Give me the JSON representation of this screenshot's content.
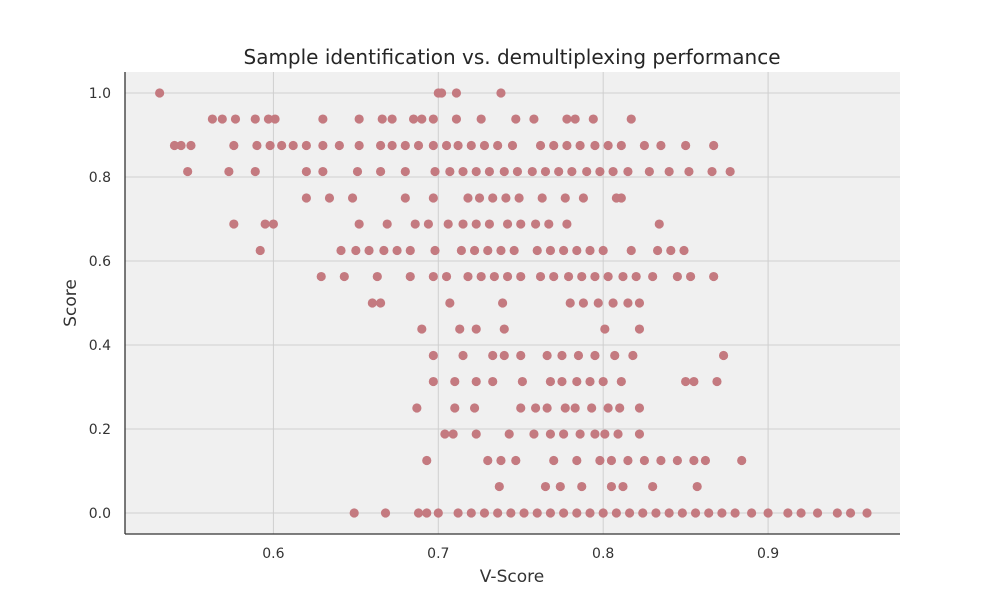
{
  "chart_data": {
    "type": "scatter",
    "title": "Sample identification vs. demultiplexing performance",
    "xlabel": "V-Score",
    "ylabel": "Score",
    "xlim": [
      0.51,
      0.98
    ],
    "ylim": [
      -0.05,
      1.05
    ],
    "xticks": [
      0.6,
      0.7,
      0.8,
      0.9
    ],
    "xtick_labels": [
      "0.6",
      "0.7",
      "0.8",
      "0.9"
    ],
    "yticks": [
      0.0,
      0.2,
      0.4,
      0.6,
      0.8,
      1.0
    ],
    "ytick_labels": [
      "0.0",
      "0.2",
      "0.4",
      "0.6",
      "0.8",
      "1.0"
    ],
    "grid": true,
    "colors": {
      "marker": "#c47a80",
      "plot_bg": "#f0f0f0",
      "grid": "#cfcfcf"
    },
    "series": [
      {
        "points": [
          [
            0.531,
            1.0
          ],
          [
            0.7,
            1.0
          ],
          [
            0.702,
            1.0
          ],
          [
            0.711,
            1.0
          ],
          [
            0.738,
            1.0
          ],
          [
            0.563,
            0.938
          ],
          [
            0.569,
            0.938
          ],
          [
            0.577,
            0.938
          ],
          [
            0.589,
            0.938
          ],
          [
            0.597,
            0.938
          ],
          [
            0.601,
            0.938
          ],
          [
            0.63,
            0.938
          ],
          [
            0.652,
            0.938
          ],
          [
            0.666,
            0.938
          ],
          [
            0.672,
            0.938
          ],
          [
            0.685,
            0.938
          ],
          [
            0.69,
            0.938
          ],
          [
            0.697,
            0.938
          ],
          [
            0.711,
            0.938
          ],
          [
            0.726,
            0.938
          ],
          [
            0.747,
            0.938
          ],
          [
            0.758,
            0.938
          ],
          [
            0.778,
            0.938
          ],
          [
            0.783,
            0.938
          ],
          [
            0.794,
            0.938
          ],
          [
            0.817,
            0.938
          ],
          [
            0.54,
            0.875
          ],
          [
            0.544,
            0.875
          ],
          [
            0.55,
            0.875
          ],
          [
            0.576,
            0.875
          ],
          [
            0.59,
            0.875
          ],
          [
            0.598,
            0.875
          ],
          [
            0.605,
            0.875
          ],
          [
            0.612,
            0.875
          ],
          [
            0.62,
            0.875
          ],
          [
            0.63,
            0.875
          ],
          [
            0.64,
            0.875
          ],
          [
            0.652,
            0.875
          ],
          [
            0.665,
            0.875
          ],
          [
            0.672,
            0.875
          ],
          [
            0.68,
            0.875
          ],
          [
            0.688,
            0.875
          ],
          [
            0.697,
            0.875
          ],
          [
            0.705,
            0.875
          ],
          [
            0.712,
            0.875
          ],
          [
            0.72,
            0.875
          ],
          [
            0.728,
            0.875
          ],
          [
            0.736,
            0.875
          ],
          [
            0.745,
            0.875
          ],
          [
            0.762,
            0.875
          ],
          [
            0.77,
            0.875
          ],
          [
            0.778,
            0.875
          ],
          [
            0.786,
            0.875
          ],
          [
            0.795,
            0.875
          ],
          [
            0.803,
            0.875
          ],
          [
            0.811,
            0.875
          ],
          [
            0.825,
            0.875
          ],
          [
            0.835,
            0.875
          ],
          [
            0.85,
            0.875
          ],
          [
            0.867,
            0.875
          ],
          [
            0.548,
            0.813
          ],
          [
            0.573,
            0.813
          ],
          [
            0.589,
            0.813
          ],
          [
            0.62,
            0.813
          ],
          [
            0.63,
            0.813
          ],
          [
            0.651,
            0.813
          ],
          [
            0.665,
            0.813
          ],
          [
            0.68,
            0.813
          ],
          [
            0.698,
            0.813
          ],
          [
            0.707,
            0.813
          ],
          [
            0.715,
            0.813
          ],
          [
            0.723,
            0.813
          ],
          [
            0.731,
            0.813
          ],
          [
            0.74,
            0.813
          ],
          [
            0.748,
            0.813
          ],
          [
            0.757,
            0.813
          ],
          [
            0.765,
            0.813
          ],
          [
            0.773,
            0.813
          ],
          [
            0.781,
            0.813
          ],
          [
            0.79,
            0.813
          ],
          [
            0.798,
            0.813
          ],
          [
            0.806,
            0.813
          ],
          [
            0.815,
            0.813
          ],
          [
            0.828,
            0.813
          ],
          [
            0.84,
            0.813
          ],
          [
            0.852,
            0.813
          ],
          [
            0.866,
            0.813
          ],
          [
            0.877,
            0.813
          ],
          [
            0.62,
            0.75
          ],
          [
            0.634,
            0.75
          ],
          [
            0.648,
            0.75
          ],
          [
            0.68,
            0.75
          ],
          [
            0.697,
            0.75
          ],
          [
            0.718,
            0.75
          ],
          [
            0.725,
            0.75
          ],
          [
            0.733,
            0.75
          ],
          [
            0.741,
            0.75
          ],
          [
            0.749,
            0.75
          ],
          [
            0.763,
            0.75
          ],
          [
            0.777,
            0.75
          ],
          [
            0.788,
            0.75
          ],
          [
            0.808,
            0.75
          ],
          [
            0.811,
            0.75
          ],
          [
            0.576,
            0.688
          ],
          [
            0.595,
            0.688
          ],
          [
            0.6,
            0.688
          ],
          [
            0.652,
            0.688
          ],
          [
            0.669,
            0.688
          ],
          [
            0.686,
            0.688
          ],
          [
            0.694,
            0.688
          ],
          [
            0.706,
            0.688
          ],
          [
            0.715,
            0.688
          ],
          [
            0.723,
            0.688
          ],
          [
            0.731,
            0.688
          ],
          [
            0.742,
            0.688
          ],
          [
            0.75,
            0.688
          ],
          [
            0.759,
            0.688
          ],
          [
            0.767,
            0.688
          ],
          [
            0.778,
            0.688
          ],
          [
            0.834,
            0.688
          ],
          [
            0.592,
            0.625
          ],
          [
            0.641,
            0.625
          ],
          [
            0.65,
            0.625
          ],
          [
            0.658,
            0.625
          ],
          [
            0.667,
            0.625
          ],
          [
            0.675,
            0.625
          ],
          [
            0.683,
            0.625
          ],
          [
            0.698,
            0.625
          ],
          [
            0.714,
            0.625
          ],
          [
            0.722,
            0.625
          ],
          [
            0.73,
            0.625
          ],
          [
            0.738,
            0.625
          ],
          [
            0.746,
            0.625
          ],
          [
            0.76,
            0.625
          ],
          [
            0.768,
            0.625
          ],
          [
            0.776,
            0.625
          ],
          [
            0.784,
            0.625
          ],
          [
            0.792,
            0.625
          ],
          [
            0.8,
            0.625
          ],
          [
            0.817,
            0.625
          ],
          [
            0.833,
            0.625
          ],
          [
            0.841,
            0.625
          ],
          [
            0.849,
            0.625
          ],
          [
            0.629,
            0.563
          ],
          [
            0.643,
            0.563
          ],
          [
            0.663,
            0.563
          ],
          [
            0.683,
            0.563
          ],
          [
            0.697,
            0.563
          ],
          [
            0.705,
            0.563
          ],
          [
            0.718,
            0.563
          ],
          [
            0.726,
            0.563
          ],
          [
            0.734,
            0.563
          ],
          [
            0.742,
            0.563
          ],
          [
            0.75,
            0.563
          ],
          [
            0.762,
            0.563
          ],
          [
            0.77,
            0.563
          ],
          [
            0.779,
            0.563
          ],
          [
            0.787,
            0.563
          ],
          [
            0.795,
            0.563
          ],
          [
            0.803,
            0.563
          ],
          [
            0.812,
            0.563
          ],
          [
            0.82,
            0.563
          ],
          [
            0.83,
            0.563
          ],
          [
            0.845,
            0.563
          ],
          [
            0.853,
            0.563
          ],
          [
            0.867,
            0.563
          ],
          [
            0.66,
            0.5
          ],
          [
            0.665,
            0.5
          ],
          [
            0.707,
            0.5
          ],
          [
            0.739,
            0.5
          ],
          [
            0.78,
            0.5
          ],
          [
            0.788,
            0.5
          ],
          [
            0.797,
            0.5
          ],
          [
            0.806,
            0.5
          ],
          [
            0.815,
            0.5
          ],
          [
            0.822,
            0.5
          ],
          [
            0.69,
            0.438
          ],
          [
            0.713,
            0.438
          ],
          [
            0.723,
            0.438
          ],
          [
            0.74,
            0.438
          ],
          [
            0.801,
            0.438
          ],
          [
            0.822,
            0.438
          ],
          [
            0.697,
            0.375
          ],
          [
            0.715,
            0.375
          ],
          [
            0.733,
            0.375
          ],
          [
            0.74,
            0.375
          ],
          [
            0.75,
            0.375
          ],
          [
            0.766,
            0.375
          ],
          [
            0.775,
            0.375
          ],
          [
            0.785,
            0.375
          ],
          [
            0.795,
            0.375
          ],
          [
            0.807,
            0.375
          ],
          [
            0.818,
            0.375
          ],
          [
            0.873,
            0.375
          ],
          [
            0.697,
            0.313
          ],
          [
            0.71,
            0.313
          ],
          [
            0.723,
            0.313
          ],
          [
            0.733,
            0.313
          ],
          [
            0.751,
            0.313
          ],
          [
            0.768,
            0.313
          ],
          [
            0.775,
            0.313
          ],
          [
            0.784,
            0.313
          ],
          [
            0.792,
            0.313
          ],
          [
            0.8,
            0.313
          ],
          [
            0.811,
            0.313
          ],
          [
            0.85,
            0.313
          ],
          [
            0.855,
            0.313
          ],
          [
            0.869,
            0.313
          ],
          [
            0.687,
            0.25
          ],
          [
            0.71,
            0.25
          ],
          [
            0.722,
            0.25
          ],
          [
            0.75,
            0.25
          ],
          [
            0.759,
            0.25
          ],
          [
            0.766,
            0.25
          ],
          [
            0.777,
            0.25
          ],
          [
            0.783,
            0.25
          ],
          [
            0.793,
            0.25
          ],
          [
            0.803,
            0.25
          ],
          [
            0.81,
            0.25
          ],
          [
            0.822,
            0.25
          ],
          [
            0.704,
            0.188
          ],
          [
            0.709,
            0.188
          ],
          [
            0.723,
            0.188
          ],
          [
            0.743,
            0.188
          ],
          [
            0.758,
            0.188
          ],
          [
            0.768,
            0.188
          ],
          [
            0.776,
            0.188
          ],
          [
            0.786,
            0.188
          ],
          [
            0.795,
            0.188
          ],
          [
            0.801,
            0.188
          ],
          [
            0.809,
            0.188
          ],
          [
            0.822,
            0.188
          ],
          [
            0.693,
            0.125
          ],
          [
            0.73,
            0.125
          ],
          [
            0.738,
            0.125
          ],
          [
            0.747,
            0.125
          ],
          [
            0.77,
            0.125
          ],
          [
            0.784,
            0.125
          ],
          [
            0.798,
            0.125
          ],
          [
            0.805,
            0.125
          ],
          [
            0.815,
            0.125
          ],
          [
            0.825,
            0.125
          ],
          [
            0.835,
            0.125
          ],
          [
            0.845,
            0.125
          ],
          [
            0.855,
            0.125
          ],
          [
            0.862,
            0.125
          ],
          [
            0.884,
            0.125
          ],
          [
            0.737,
            0.063
          ],
          [
            0.765,
            0.063
          ],
          [
            0.774,
            0.063
          ],
          [
            0.787,
            0.063
          ],
          [
            0.805,
            0.063
          ],
          [
            0.812,
            0.063
          ],
          [
            0.83,
            0.063
          ],
          [
            0.857,
            0.063
          ],
          [
            0.649,
            0.0
          ],
          [
            0.668,
            0.0
          ],
          [
            0.688,
            0.0
          ],
          [
            0.693,
            0.0
          ],
          [
            0.7,
            0.0
          ],
          [
            0.712,
            0.0
          ],
          [
            0.72,
            0.0
          ],
          [
            0.728,
            0.0
          ],
          [
            0.736,
            0.0
          ],
          [
            0.744,
            0.0
          ],
          [
            0.752,
            0.0
          ],
          [
            0.76,
            0.0
          ],
          [
            0.768,
            0.0
          ],
          [
            0.776,
            0.0
          ],
          [
            0.784,
            0.0
          ],
          [
            0.792,
            0.0
          ],
          [
            0.8,
            0.0
          ],
          [
            0.808,
            0.0
          ],
          [
            0.816,
            0.0
          ],
          [
            0.824,
            0.0
          ],
          [
            0.832,
            0.0
          ],
          [
            0.84,
            0.0
          ],
          [
            0.848,
            0.0
          ],
          [
            0.856,
            0.0
          ],
          [
            0.864,
            0.0
          ],
          [
            0.872,
            0.0
          ],
          [
            0.88,
            0.0
          ],
          [
            0.89,
            0.0
          ],
          [
            0.9,
            0.0
          ],
          [
            0.912,
            0.0
          ],
          [
            0.92,
            0.0
          ],
          [
            0.93,
            0.0
          ],
          [
            0.942,
            0.0
          ],
          [
            0.95,
            0.0
          ],
          [
            0.96,
            0.0
          ]
        ]
      }
    ]
  }
}
